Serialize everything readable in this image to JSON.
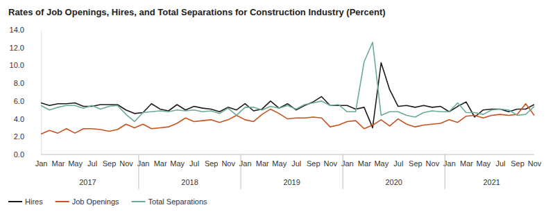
{
  "chart_data": {
    "type": "line",
    "title": "Rates of Job Openings, Hires, and Total Separations for Construction Industry (Percent)",
    "categories": [
      "Jan",
      null,
      "Mar",
      null,
      "May",
      null,
      "Jul",
      null,
      "Sep",
      null,
      "Nov",
      null,
      "Jan",
      null,
      "Mar",
      null,
      "May",
      null,
      "Jul",
      null,
      "Sep",
      null,
      "Nov",
      null,
      "Jan",
      null,
      "Mar",
      null,
      "May",
      null,
      "Jul",
      null,
      "Sep",
      null,
      "Nov",
      null,
      "Jan",
      null,
      "Mar",
      null,
      "May",
      null,
      "Jul",
      null,
      "Sep",
      null,
      "Nov",
      null,
      "Jan",
      null,
      "Mar",
      null,
      "May",
      null,
      "Jul",
      null,
      "Sep",
      null,
      "Nov"
    ],
    "category_groups": [
      "2017",
      "2017",
      "2017",
      "2017",
      "2017",
      "2017",
      "2017",
      "2017",
      "2017",
      "2017",
      "2017",
      "2017",
      "2018",
      "2018",
      "2018",
      "2018",
      "2018",
      "2018",
      "2018",
      "2018",
      "2018",
      "2018",
      "2018",
      "2018",
      "2019",
      "2019",
      "2019",
      "2019",
      "2019",
      "2019",
      "2019",
      "2019",
      "2019",
      "2019",
      "2019",
      "2019",
      "2020",
      "2020",
      "2020",
      "2020",
      "2020",
      "2020",
      "2020",
      "2020",
      "2020",
      "2020",
      "2020",
      "2020",
      "2021",
      "2021",
      "2021",
      "2021",
      "2021",
      "2021",
      "2021",
      "2021",
      "2021",
      "2021",
      "2021"
    ],
    "series": [
      {
        "name": "Hires",
        "color": "#1f1a17",
        "values": [
          5.8,
          5.5,
          5.7,
          5.7,
          5.8,
          5.4,
          5.4,
          5.6,
          5.6,
          5.6,
          5.0,
          4.6,
          4.7,
          5.7,
          5.1,
          4.9,
          5.6,
          5.0,
          5.4,
          5.2,
          5.1,
          4.8,
          5.3,
          5.0,
          5.7,
          4.9,
          5.1,
          6.0,
          5.2,
          5.7,
          5.0,
          5.5,
          5.9,
          6.5,
          5.5,
          5.5,
          5.5,
          5.1,
          5.3,
          3.0,
          10.3,
          7.3,
          5.4,
          5.5,
          5.3,
          5.5,
          5.3,
          5.4,
          4.8,
          5.4,
          5.9,
          4.2,
          5.0,
          5.1,
          5.1,
          4.8,
          5.1,
          5.1,
          5.6
        ]
      },
      {
        "name": "Job Openings",
        "color": "#c8511d",
        "values": [
          2.3,
          2.7,
          2.4,
          2.9,
          2.4,
          2.9,
          2.9,
          2.8,
          2.6,
          2.8,
          3.4,
          3.0,
          3.4,
          2.9,
          3.0,
          3.1,
          3.5,
          4.1,
          3.7,
          3.8,
          3.9,
          3.6,
          3.9,
          4.4,
          3.9,
          3.7,
          4.5,
          5.1,
          4.6,
          4.0,
          4.1,
          4.1,
          4.2,
          4.1,
          3.1,
          3.3,
          3.7,
          3.8,
          2.9,
          3.3,
          3.9,
          3.2,
          4.0,
          3.4,
          3.1,
          3.3,
          3.4,
          3.5,
          3.9,
          3.6,
          4.3,
          4.4,
          4.1,
          4.4,
          4.5,
          4.4,
          4.5,
          5.7,
          4.4
        ]
      },
      {
        "name": "Total Separations",
        "color": "#6aaa96",
        "values": [
          5.5,
          5.0,
          5.3,
          5.5,
          5.5,
          5.2,
          5.5,
          5.1,
          5.4,
          5.5,
          4.5,
          3.7,
          4.7,
          4.8,
          4.9,
          4.8,
          5.0,
          4.9,
          5.0,
          4.8,
          4.9,
          4.6,
          5.2,
          4.4,
          5.3,
          5.3,
          5.0,
          5.4,
          5.2,
          5.5,
          5.1,
          5.6,
          5.8,
          6.0,
          5.5,
          5.6,
          4.8,
          4.8,
          10.4,
          12.6,
          4.4,
          4.8,
          4.8,
          4.4,
          4.2,
          4.7,
          4.9,
          4.8,
          4.8,
          5.8,
          4.7,
          4.7,
          4.5,
          5.0,
          5.1,
          5.0,
          4.4,
          4.5,
          5.4
        ]
      }
    ],
    "ylim": [
      0,
      14
    ],
    "yticks": [
      {
        "value": 0,
        "label": "0.0"
      },
      {
        "value": 2,
        "label": "2.0"
      },
      {
        "value": 4,
        "label": "4.0"
      },
      {
        "value": 6,
        "label": "6.0"
      },
      {
        "value": 8,
        "label": "8.0"
      },
      {
        "value": 10,
        "label": "10.0"
      },
      {
        "value": 12,
        "label": "12.0"
      },
      {
        "value": 14,
        "label": "14.0"
      }
    ],
    "grid": false,
    "legend": "bottom-left"
  }
}
